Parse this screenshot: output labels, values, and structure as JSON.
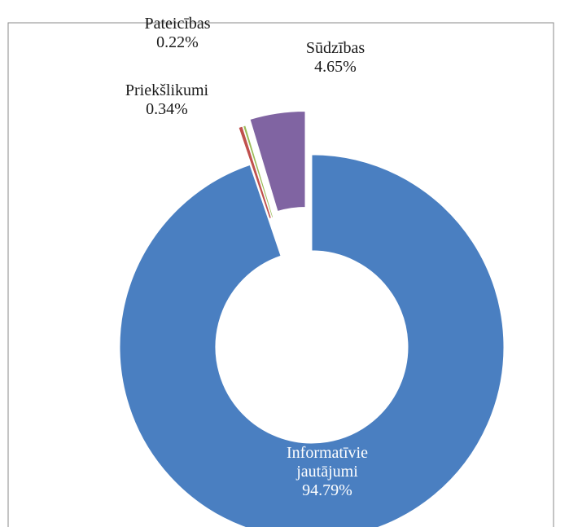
{
  "chart_data": {
    "type": "donut",
    "categories": [
      "Informatīvie jautājumi",
      "Priekšlikumi",
      "Pateicības",
      "Sūdzības"
    ],
    "values": [
      94.79,
      0.34,
      0.22,
      4.65
    ],
    "value_labels": [
      "94.79%",
      "0.34%",
      "0.22%",
      "4.65%"
    ],
    "colors": [
      "#4a7fc1",
      "#c0504d",
      "#9bbb59",
      "#8064a2"
    ]
  }
}
